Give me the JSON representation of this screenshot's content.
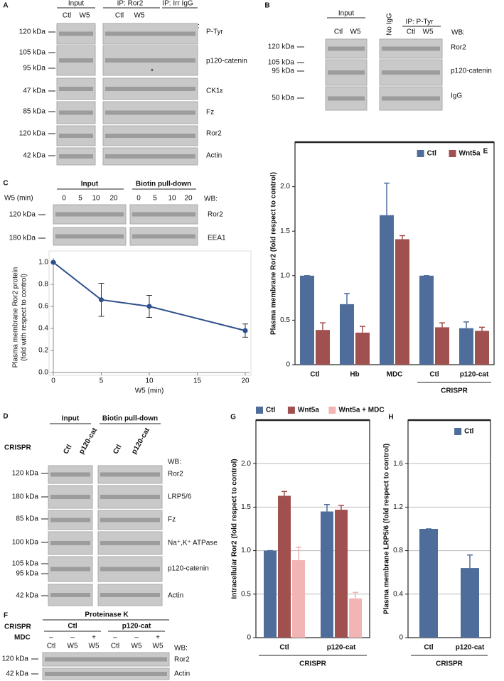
{
  "panels": {
    "A": {
      "label": "A",
      "headers": [
        "Input",
        "IP: Ror2",
        "IP: Irr IgG"
      ],
      "lanes": [
        "Ctl",
        "W5",
        "Ctl",
        "W5"
      ],
      "wb": "WB:",
      "markers": [
        "120 kDa",
        "105 kDa",
        "95 kDa",
        "47 kDa",
        "85 kDa",
        "120 kDa",
        "42 kDa"
      ],
      "proteins": [
        "P-Tyr",
        "p120-catenin",
        "CK1ε",
        "Fz",
        "Ror2",
        "Actin"
      ],
      "asterisk": "*"
    },
    "B": {
      "label": "B",
      "headers": [
        "Input",
        "IP: P-Tyr"
      ],
      "control": "No IgG",
      "lanes": [
        "Ctl",
        "W5",
        "Ctl",
        "W5"
      ],
      "wb": "WB:",
      "markers": [
        "120 kDa",
        "105 kDa",
        "95 kDa",
        "50 kDa"
      ],
      "proteins": [
        "Ror2",
        "p120-catenin",
        "IgG"
      ]
    },
    "C": {
      "label": "C",
      "treatment": "W5 (min)",
      "headers": [
        "Input",
        "Biotin pull-down"
      ],
      "lanes": [
        "0",
        "5",
        "10",
        "20",
        "0",
        "5",
        "10",
        "20"
      ],
      "wb": "WB:",
      "markers": [
        "120 kDa",
        "180 kDa"
      ],
      "proteins": [
        "Ror2",
        "EEA1"
      ]
    },
    "D": {
      "label": "D",
      "row_label": "CRISPR",
      "headers": [
        "Input",
        "Biotin pull-down"
      ],
      "lanes": [
        "Ctl",
        "p120-cat",
        "Ctl",
        "p120-cat"
      ],
      "wb": "WB:",
      "markers": [
        "120 kDa",
        "180 kDa",
        "85 kDa",
        "100 kDa",
        "105 kDa",
        "95 kDa",
        "42 kDa"
      ],
      "proteins": [
        "Ror2",
        "LRP5/6",
        "Fz",
        "Na⁺,K⁺ ATPase",
        "p120-catenin",
        "Actin"
      ]
    },
    "F": {
      "label": "F",
      "header": "Proteinase K",
      "row_labels": [
        "CRISPR",
        "MDC"
      ],
      "groups": [
        "Ctl",
        "p120-cat"
      ],
      "mdc": [
        "–",
        "–",
        "+",
        "–",
        "–",
        "+"
      ],
      "lanes": [
        "Ctl",
        "W5",
        "W5",
        "Ctl",
        "W5",
        "W5"
      ],
      "wb": "WB:",
      "markers": [
        "120 kDa",
        "42 kDa"
      ],
      "proteins": [
        "Ror2",
        "Actin"
      ]
    }
  },
  "chart_data": [
    {
      "type": "line",
      "xlabel": "W5 (min)",
      "ylabel": [
        "Plasma membrane Ror2 protein",
        "(fold with respect to control)"
      ],
      "x": [
        0,
        5,
        10,
        20
      ],
      "series": [
        {
          "color": "#2e4f8a",
          "values": [
            1,
            0.66,
            0.6,
            0.38
          ],
          "errors": [
            0,
            0.15,
            0.1,
            0.06
          ]
        }
      ],
      "xlim": [
        0,
        20
      ],
      "xticks": [
        0,
        5,
        10,
        15,
        20
      ],
      "ylim": [
        0,
        1
      ],
      "yticks": [
        {
          "value": 0,
          "label": "0.0"
        },
        0.2,
        0.4,
        0.6,
        0.8,
        {
          "value": 1,
          "label": "1.0"
        }
      ],
      "grid": false
    },
    {
      "type": "bar",
      "panel_label": "E",
      "ylabel": "Plasma membrane Ror2 (fold respect to control)",
      "group_label": "CRISPR",
      "categories": [
        "Ctl",
        "Hb",
        "MDC",
        "Ctl",
        "p120-cat"
      ],
      "series": [
        {
          "name": "Ctl",
          "color": "#4f6d9a",
          "values": [
            1,
            0.68,
            1.68,
            1,
            0.41
          ],
          "errors": [
            0,
            0.12,
            0.36,
            0,
            0.07
          ]
        },
        {
          "name": "Wnt5a",
          "color": "#a0504e",
          "values": [
            0.39,
            0.36,
            1.41,
            0.42,
            0.38
          ],
          "errors": [
            0.08,
            0.07,
            0.04,
            0.05,
            0.04
          ]
        }
      ],
      "ylim": [
        0,
        2.5
      ],
      "yticks": [
        0,
        0.5,
        {
          "value": 1,
          "label": "1.0"
        },
        1.5,
        {
          "value": 2,
          "label": "2.0"
        }
      ],
      "grid": false,
      "legend": "top-right"
    },
    {
      "type": "bar",
      "panel_label": "G",
      "ylabel": "Intracellular Ror2 (fold respect to control)",
      "group_label": "CRISPR",
      "categories": [
        "Ctl",
        "p120-cat"
      ],
      "series": [
        {
          "name": "Ctl",
          "color": "#4f6d9a",
          "values": [
            1,
            1.45
          ],
          "errors": [
            0,
            0.08
          ]
        },
        {
          "name": "Wnt5a",
          "color": "#a0504e",
          "values": [
            1.63,
            1.47
          ],
          "errors": [
            0.05,
            0.05
          ]
        },
        {
          "name": "Wnt5a + MDC",
          "color": "#f2b4b4",
          "values": [
            0.89,
            0.45
          ],
          "errors": [
            0.15,
            0.07
          ]
        }
      ],
      "ylim": [
        0,
        2.5
      ],
      "yticks": [
        0,
        0.5,
        {
          "value": 1,
          "label": "1.0"
        },
        1.5,
        {
          "value": 2,
          "label": "2.0"
        }
      ],
      "grid": true,
      "legend": "top"
    },
    {
      "type": "bar",
      "panel_label": "H",
      "ylabel": "Plasma membrane LRP5/6 (fold respect to control)",
      "group_label": "CRISPR",
      "categories": [
        "Ctl",
        "p120-cat"
      ],
      "series": [
        {
          "name": "Ctl",
          "color": "#4f6d9a",
          "values": [
            1,
            0.64
          ],
          "errors": [
            0,
            0.12
          ]
        }
      ],
      "ylim": [
        0,
        2
      ],
      "yticks": [
        0,
        0.4,
        0.8,
        1.2,
        1.6
      ],
      "grid": true,
      "legend": "top-right"
    }
  ]
}
